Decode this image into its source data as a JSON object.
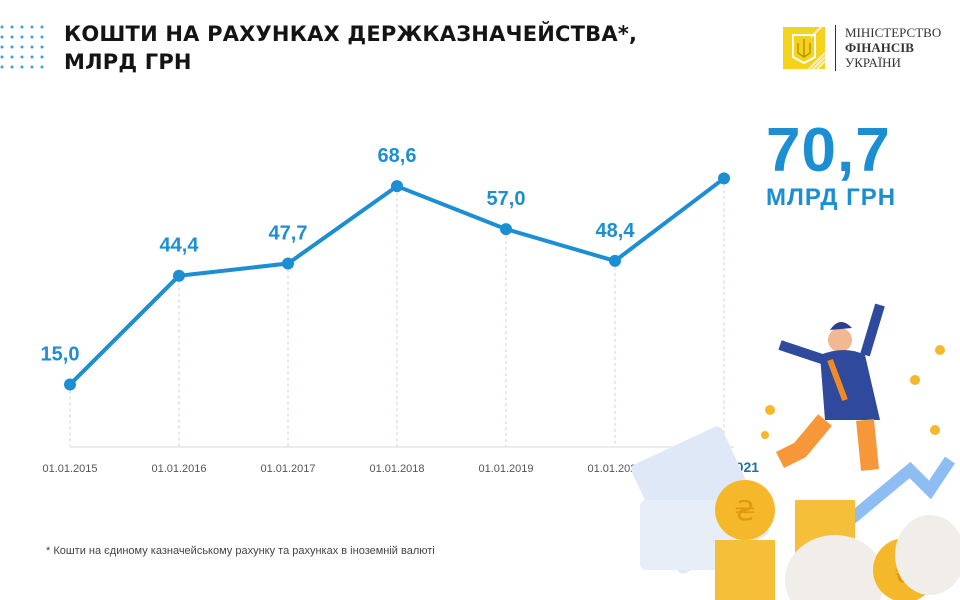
{
  "title": {
    "line1": "КОШТИ НА РАХУНКАХ ДЕРЖКАЗНАЧЕЙСТВА*,",
    "line2": "МЛРД ГРН"
  },
  "logo": {
    "line1": "МІНІСТЕРСТВО",
    "line2": "ФІНАНСІВ",
    "line3": "УКРАЇНИ"
  },
  "highlight": {
    "value": "70,7",
    "unit": "МЛРД ГРН"
  },
  "footnote": "* Кошти на єдиному казначейському рахунку та рахунках в іноземній валюті",
  "colors": {
    "line": "#1b8ed4",
    "title": "#141414",
    "logo": "#f5d31c"
  },
  "chart_data": {
    "type": "line",
    "title": "КОШТИ НА РАХУНКАХ ДЕРЖКАЗНАЧЕЙСТВА*, МЛРД ГРН",
    "categories": [
      "01.01.2015",
      "01.01.2016",
      "01.01.2017",
      "01.01.2018",
      "01.01.2019",
      "01.01.2020",
      "01.01.2021"
    ],
    "values": [
      15.0,
      44.4,
      47.7,
      68.6,
      57.0,
      48.4,
      70.7
    ],
    "data_labels": [
      "15,0",
      "44,4",
      "47,7",
      "68,6",
      "57,0",
      "48,4",
      ""
    ],
    "highlighted_category": "01.01.2021",
    "grid": false,
    "legend": "none"
  }
}
